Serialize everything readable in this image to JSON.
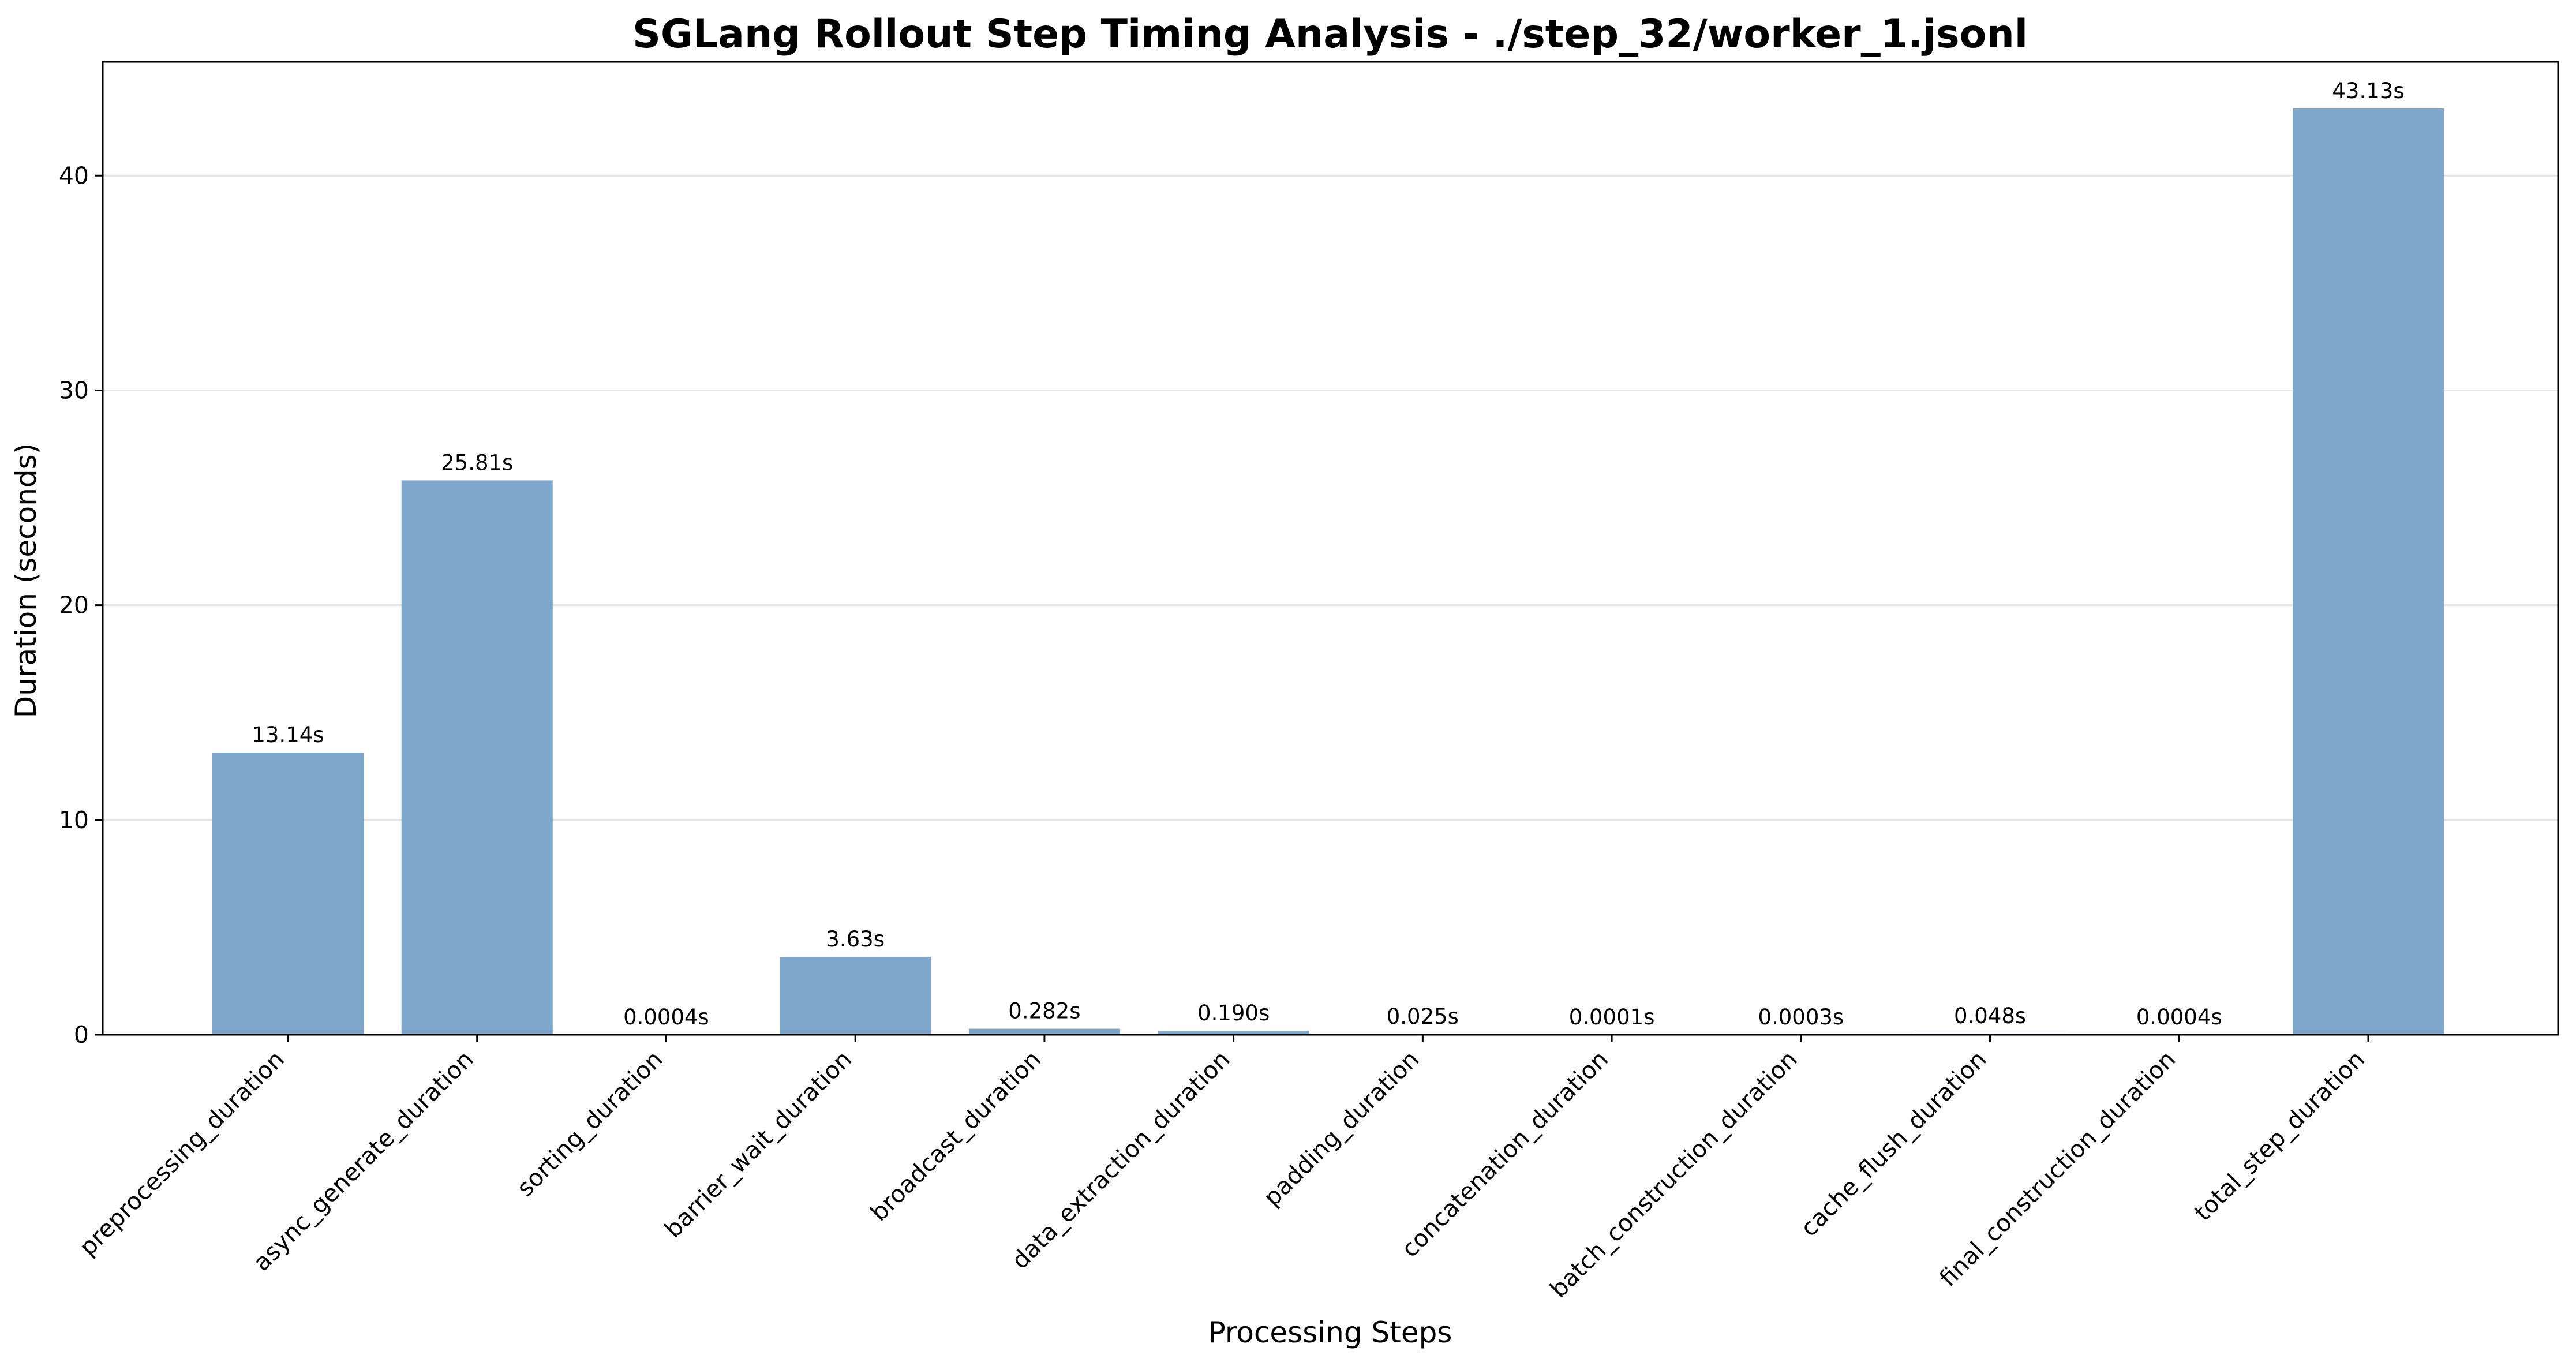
{
  "chart_data": {
    "type": "bar",
    "title": "SGLang Rollout Step Timing Analysis - ./step_32/worker_1.jsonl",
    "xlabel": "Processing Steps",
    "ylabel": "Duration (seconds)",
    "ylim": [
      0,
      45.3
    ],
    "yticks": [
      0,
      10,
      20,
      30,
      40
    ],
    "ytick_labels": [
      "0",
      "10",
      "20",
      "30",
      "40"
    ],
    "grid": "y-major",
    "bar_color": "#7ea7cb",
    "categories": [
      "preprocessing_duration",
      "async_generate_duration",
      "sorting_duration",
      "barrier_wait_duration",
      "broadcast_duration",
      "data_extraction_duration",
      "padding_duration",
      "concatenation_duration",
      "batch_construction_duration",
      "cache_flush_duration",
      "final_construction_duration",
      "total_step_duration"
    ],
    "values": [
      13.14,
      25.81,
      0.0004,
      3.63,
      0.282,
      0.19,
      0.025,
      0.0001,
      0.0003,
      0.048,
      0.0004,
      43.13
    ],
    "data_labels": [
      "13.14s",
      "25.81s",
      "0.0004s",
      "3.63s",
      "0.282s",
      "0.190s",
      "0.025s",
      "0.0001s",
      "0.0003s",
      "0.048s",
      "0.0004s",
      "43.13s"
    ]
  }
}
